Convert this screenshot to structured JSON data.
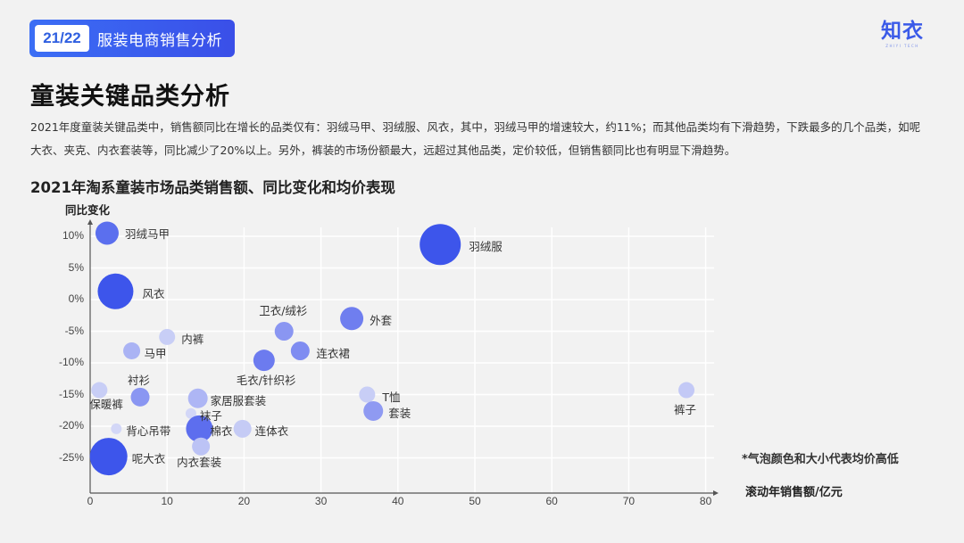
{
  "header": {
    "page_indicator": "21/22",
    "deck_title": "服装电商销售分析",
    "logo_text": "知衣",
    "logo_subtext": "ZHIYI TECH"
  },
  "slide": {
    "title": "童装关键品类分析",
    "description": "2021年度童装关键品类中，销售额同比在增长的品类仅有：羽绒马甲、羽绒服、风衣，其中，羽绒马甲的增速较大，约11%；而其他品类均有下滑趋势，下跌最多的几个品类，如呢大衣、夹克、内衣套装等，同比减少了20%以上。另外，裤装的市场份额最大，远超过其他品类，定价较低，但销售额同比也有明显下滑趋势。"
  },
  "colors": {
    "accent": "#3a4fe8",
    "bubble_high": "#3d55eb",
    "bubble_mid": "#7382f0",
    "bubble_low": "#c5cbf5",
    "background": "#f2f2f2",
    "grid": "#ffffff"
  },
  "chart_data": {
    "type": "scatter",
    "subtype": "bubble",
    "title": "2021年淘系童装市场品类销售额、同比变化和均价表现",
    "xlabel": "滚动年销售额/亿元",
    "ylabel": "同比变化",
    "note": "*气泡颜色和大小代表均价高低",
    "xlim": [
      0,
      80
    ],
    "ylim": [
      -30,
      12
    ],
    "x_ticks": [
      "0",
      "10",
      "20",
      "30",
      "40",
      "50",
      "60",
      "70",
      "80"
    ],
    "y_ticks": [
      "10%",
      "5%",
      "0%",
      "-5%",
      "-10%",
      "-15%",
      "-20%",
      "-25%"
    ],
    "grid": true,
    "legend": "none",
    "points": [
      {
        "label": "羽绒马甲",
        "x": 2.2,
        "y": 10.5,
        "size": 3,
        "price_level": "high"
      },
      {
        "label": "羽绒服",
        "x": 45.5,
        "y": 8.7,
        "size": 5,
        "price_level": "high"
      },
      {
        "label": "风衣",
        "x": 3.3,
        "y": 1.3,
        "size": 4,
        "price_level": "high"
      },
      {
        "label": "卫衣/绒衫",
        "x": 25.2,
        "y": -5.0,
        "size": 2,
        "price_level": "mid"
      },
      {
        "label": "外套",
        "x": 34.0,
        "y": -3.0,
        "size": 3,
        "price_level": "mid"
      },
      {
        "label": "内裤",
        "x": 10.0,
        "y": -5.9,
        "size": 1,
        "price_level": "low"
      },
      {
        "label": "马甲",
        "x": 5.4,
        "y": -8.1,
        "size": 2,
        "price_level": "low"
      },
      {
        "label": "连衣裙",
        "x": 27.3,
        "y": -8.1,
        "size": 2,
        "price_level": "mid"
      },
      {
        "label": "毛衣/针织衫",
        "x": 22.6,
        "y": -9.6,
        "size": 3,
        "price_level": "mid"
      },
      {
        "label": "衬衫",
        "x": 6.5,
        "y": -15.4,
        "size": 2,
        "price_level": "mid"
      },
      {
        "label": "保暖裤",
        "x": 1.2,
        "y": -14.3,
        "size": 1,
        "price_level": "low"
      },
      {
        "label": "家居服套装",
        "x": 14.0,
        "y": -15.6,
        "size": 2,
        "price_level": "low"
      },
      {
        "label": "T恤",
        "x": 36.0,
        "y": -15.0,
        "size": 1,
        "price_level": "low"
      },
      {
        "label": "套装",
        "x": 36.8,
        "y": -17.6,
        "size": 2,
        "price_level": "mid"
      },
      {
        "label": "裤子",
        "x": 77.5,
        "y": -14.3,
        "size": 1,
        "price_level": "low"
      },
      {
        "label": "袜子",
        "x": 13.1,
        "y": -18.0,
        "size": 1,
        "price_level": "low"
      },
      {
        "label": "背心吊带",
        "x": 3.4,
        "y": -20.4,
        "size": 1,
        "price_level": "low"
      },
      {
        "label": "棉衣",
        "x": 14.2,
        "y": -20.4,
        "size": 3,
        "price_level": "high"
      },
      {
        "label": "连体衣",
        "x": 19.8,
        "y": -20.4,
        "size": 2,
        "price_level": "low"
      },
      {
        "label": "内衣套装",
        "x": 14.4,
        "y": -23.2,
        "size": 2,
        "price_level": "low"
      },
      {
        "label": "呢大衣",
        "x": 2.4,
        "y": -24.8,
        "size": 4,
        "price_level": "high"
      }
    ]
  }
}
